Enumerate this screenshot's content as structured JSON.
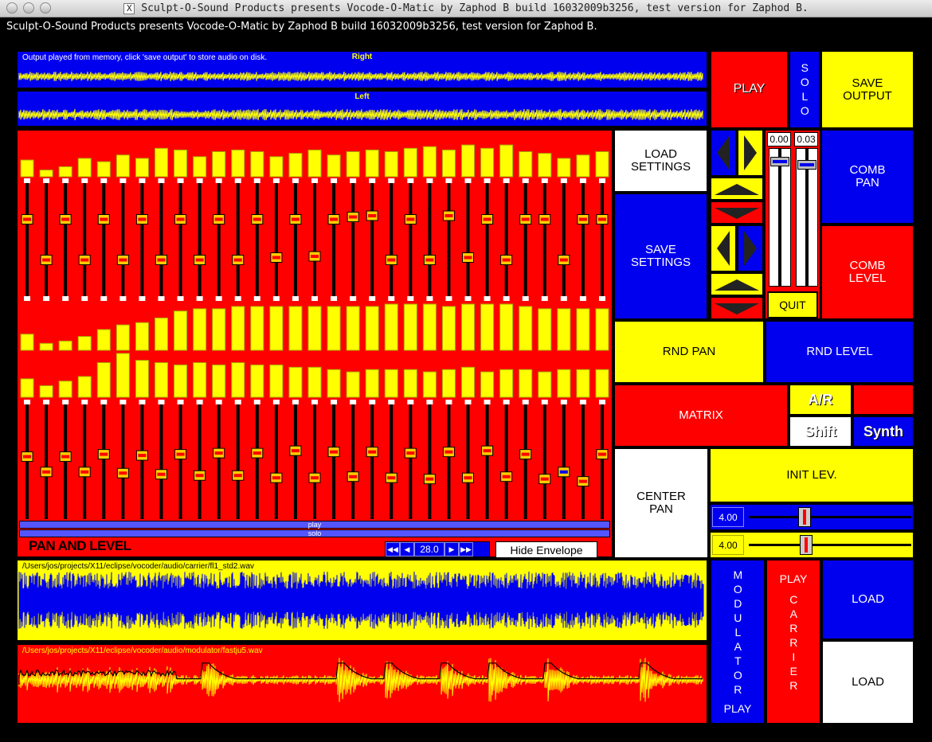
{
  "window": {
    "title": "Sculpt-O-Sound Products presents Vocode-O-Matic by Zaphod B build 16032009b3256, test version for Zaphod B.",
    "x_icon": "X"
  },
  "app_label": "Sculpt-O-Sound Products presents Vocode-O-Matic by Zaphod B build 16032009b3256, test version for Zaphod B.",
  "output": {
    "caption": "Output played from memory, click 'save output' to store audio on disk.",
    "right_label": "Right",
    "left_label": "Left"
  },
  "buttons": {
    "play": "PLAY",
    "solo": "SOLO",
    "save_output": "SAVE\nOUTPUT",
    "load_settings": "LOAD\nSETTINGS",
    "save_settings": "SAVE\nSETTINGS",
    "comb_pan": "COMB\nPAN",
    "comb_level": "COMB\nLEVEL",
    "quit": "QUIT",
    "rnd_pan": "RND PAN",
    "rnd_level": "RND LEVEL",
    "matrix": "MATRIX",
    "ar": "A/R",
    "shift": "Shift",
    "synth": "Synth",
    "center_pan": "CENTER\nPAN",
    "init_lev": "INIT LEV.",
    "modulator_play": "MODULATOR",
    "modulator_play2": "PLAY",
    "play_carrier": "PLAY",
    "play_carrier2": "CARRIER",
    "load_carrier": "LOAD",
    "load_modulator": "LOAD",
    "hide_envelope": "Hide Envelope"
  },
  "small_sliders": {
    "left_value": "0.00",
    "right_value": "0.03"
  },
  "pan_level": {
    "title": "PAN AND LEVEL",
    "play_bar": "play",
    "solo_bar": "solo",
    "spin_value": "28.0"
  },
  "init_sliders": {
    "first_value": "4.00",
    "second_value": "4.00"
  },
  "carrier": {
    "path": "/Users/jos/projects/X11/eclipse/vocoder/audio/carrier/fl1_std2.wav"
  },
  "modulator": {
    "path": "/Users/jos/projects/X11/eclipse/vocoder/audio/modulator/fastju5.wav"
  },
  "bands": {
    "count": 31,
    "pan_meter": [
      0.5,
      0.2,
      0.3,
      0.55,
      0.45,
      0.65,
      0.55,
      0.85,
      0.8,
      0.6,
      0.75,
      0.8,
      0.75,
      0.6,
      0.7,
      0.8,
      0.65,
      0.75,
      0.8,
      0.75,
      0.85,
      0.9,
      0.8,
      0.95,
      0.85,
      0.95,
      0.75,
      0.7,
      0.55,
      0.65,
      0.75
    ],
    "pan_pos": [
      0.33,
      0.67,
      0.33,
      0.67,
      0.33,
      0.67,
      0.33,
      0.67,
      0.33,
      0.67,
      0.33,
      0.67,
      0.33,
      0.65,
      0.33,
      0.64,
      0.33,
      0.31,
      0.3,
      0.67,
      0.33,
      0.67,
      0.3,
      0.65,
      0.33,
      0.67,
      0.33,
      0.33,
      0.67,
      0.33,
      0.33
    ],
    "level_meter_top": [
      0.35,
      0.15,
      0.2,
      0.3,
      0.45,
      0.55,
      0.6,
      0.7,
      0.85,
      0.9,
      0.9,
      0.95,
      0.95,
      0.95,
      0.95,
      0.95,
      0.95,
      0.95,
      0.95,
      1.0,
      1.0,
      1.0,
      0.95,
      1.0,
      1.0,
      1.0,
      0.95,
      0.9,
      0.9,
      0.9,
      0.9
    ],
    "level_meter_bottom": [
      0.4,
      0.25,
      0.35,
      0.45,
      0.75,
      0.95,
      0.8,
      0.75,
      0.7,
      0.75,
      0.7,
      0.75,
      0.7,
      0.7,
      0.65,
      0.65,
      0.6,
      0.55,
      0.6,
      0.6,
      0.6,
      0.55,
      0.6,
      0.65,
      0.55,
      0.6,
      0.6,
      0.55,
      0.6,
      0.6,
      0.6
    ],
    "level_pos": [
      0.47,
      0.6,
      0.47,
      0.6,
      0.45,
      0.61,
      0.46,
      0.62,
      0.45,
      0.63,
      0.44,
      0.63,
      0.44,
      0.65,
      0.42,
      0.65,
      0.43,
      0.64,
      0.43,
      0.65,
      0.44,
      0.66,
      0.43,
      0.65,
      0.42,
      0.64,
      0.45,
      0.66,
      0.6,
      0.68,
      0.45
    ],
    "band_colors": {
      "meter": "#ffff00",
      "track": "#000000",
      "knob": "#ff0000"
    }
  },
  "colors": {
    "red": "#ff0000",
    "blue": "#0000ee",
    "yellow": "#ffff00",
    "white": "#ffffff",
    "black": "#000000"
  },
  "icons": {
    "left_arrow": "triangle-left-icon",
    "right_arrow": "triangle-right-icon",
    "up_arrow": "triangle-up-icon",
    "down_arrow": "triangle-down-icon"
  }
}
